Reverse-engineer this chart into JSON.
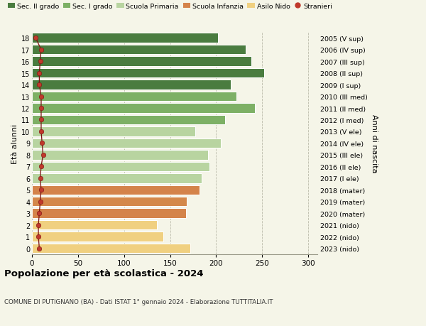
{
  "ages": [
    18,
    17,
    16,
    15,
    14,
    13,
    12,
    11,
    10,
    9,
    8,
    7,
    6,
    5,
    4,
    3,
    2,
    1,
    0
  ],
  "right_labels": [
    "2005 (V sup)",
    "2006 (IV sup)",
    "2007 (III sup)",
    "2008 (II sup)",
    "2009 (I sup)",
    "2010 (III med)",
    "2011 (II med)",
    "2012 (I med)",
    "2013 (V ele)",
    "2014 (IV ele)",
    "2015 (III ele)",
    "2016 (II ele)",
    "2017 (I ele)",
    "2018 (mater)",
    "2019 (mater)",
    "2020 (mater)",
    "2021 (nido)",
    "2022 (nido)",
    "2023 (nido)"
  ],
  "bar_values": [
    202,
    232,
    238,
    252,
    216,
    222,
    242,
    210,
    177,
    205,
    191,
    193,
    184,
    182,
    168,
    167,
    136,
    143,
    172
  ],
  "bar_colors": [
    "#4a7c3f",
    "#4a7c3f",
    "#4a7c3f",
    "#4a7c3f",
    "#4a7c3f",
    "#7db065",
    "#7db065",
    "#7db065",
    "#b8d4a0",
    "#b8d4a0",
    "#b8d4a0",
    "#b8d4a0",
    "#b8d4a0",
    "#d4834a",
    "#d4884a",
    "#d4844a",
    "#f0d080",
    "#f0d080",
    "#f0d080"
  ],
  "stranieri_values": [
    4,
    10,
    9,
    8,
    8,
    10,
    10,
    10,
    10,
    11,
    12,
    10,
    9,
    10,
    9,
    8,
    7,
    7,
    8
  ],
  "legend_labels": [
    "Sec. II grado",
    "Sec. I grado",
    "Scuola Primaria",
    "Scuola Infanzia",
    "Asilo Nido",
    "Stranieri"
  ],
  "legend_colors": [
    "#4a7c3f",
    "#7db065",
    "#b8d4a0",
    "#d4834a",
    "#f0d080",
    "#c0392b"
  ],
  "title": "Popolazione per età scolastica - 2024",
  "subtitle": "COMUNE DI PUTIGNANO (BA) - Dati ISTAT 1° gennaio 2024 - Elaborazione TUTTITALIA.IT",
  "ylabel_left": "Età alunni",
  "ylabel_right": "Anni di nascita",
  "xlim": [
    0,
    310
  ],
  "xticks": [
    0,
    50,
    100,
    150,
    200,
    250,
    300
  ],
  "bg_color": "#f5f5e8",
  "bar_edgecolor": "#ffffff"
}
